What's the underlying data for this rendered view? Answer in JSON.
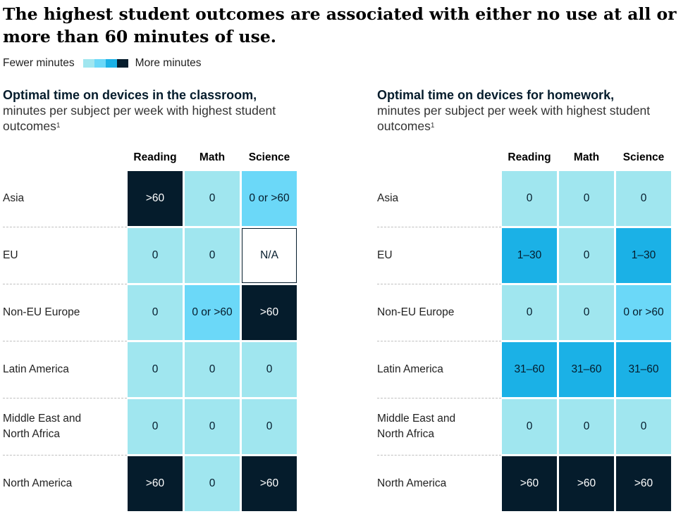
{
  "title": "The highest student outcomes are associated with either no use at all or more than 60 minutes of use.",
  "legend": {
    "low_label": "Fewer minutes",
    "high_label": "More minutes",
    "colors": [
      "#a0e6ef",
      "#6bd8f8",
      "#1bb1e6",
      "#051c2c"
    ]
  },
  "chart_data": [
    {
      "type": "table",
      "title": "Optimal time on devices in the classroom,",
      "subtitle": "minutes per subject per week with highest student outcomes",
      "footnote_marker": "1",
      "columns": [
        "Reading",
        "Math",
        "Science"
      ],
      "rows": [
        "Asia",
        "EU",
        "Non-EU Europe",
        "Latin America",
        "Middle East and North Africa",
        "North America"
      ],
      "values": [
        [
          ">60",
          "0",
          "0 or >60"
        ],
        [
          "0",
          "0",
          "N/A"
        ],
        [
          "0",
          "0 or >60",
          ">60"
        ],
        [
          "0",
          "0",
          "0"
        ],
        [
          "0",
          "0",
          "0"
        ],
        [
          ">60",
          "0",
          ">60"
        ]
      ]
    },
    {
      "type": "table",
      "title": "Optimal time on devices for homework,",
      "subtitle": "minutes per subject per week with highest student outcomes",
      "footnote_marker": "1",
      "columns": [
        "Reading",
        "Math",
        "Science"
      ],
      "rows": [
        "Asia",
        "EU",
        "Non-EU Europe",
        "Latin America",
        "Middle East and North Africa",
        "North America"
      ],
      "values": [
        [
          "0",
          "0",
          "0"
        ],
        [
          "1–30",
          "0",
          "1–30"
        ],
        [
          "0",
          "0",
          "0 or >60"
        ],
        [
          "31–60",
          "31–60",
          "31–60"
        ],
        [
          "0",
          "0",
          "0"
        ],
        [
          ">60",
          ">60",
          ">60"
        ]
      ]
    }
  ]
}
